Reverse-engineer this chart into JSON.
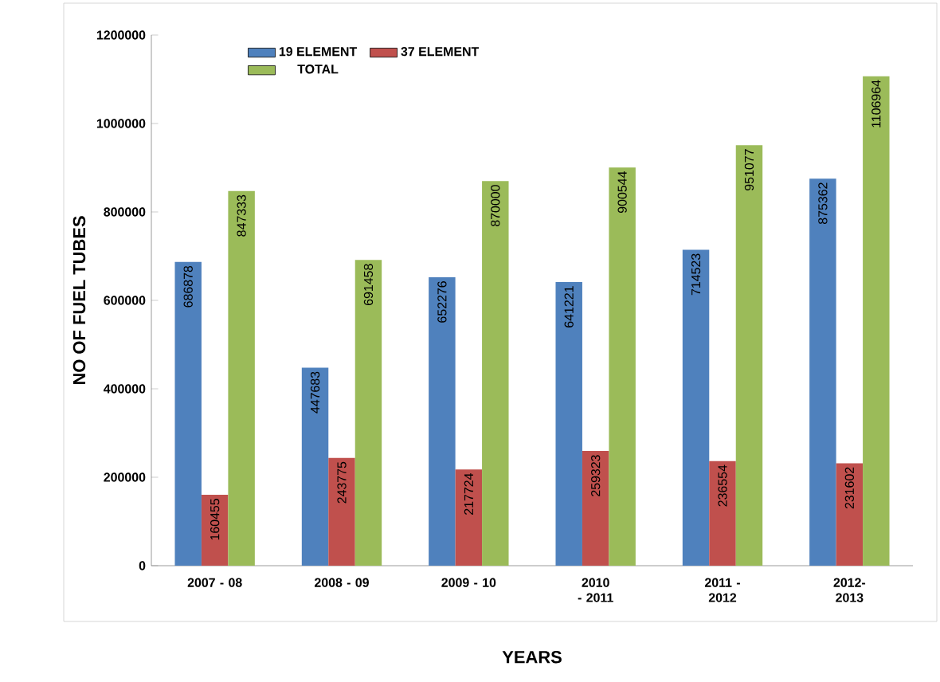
{
  "chart_data": {
    "type": "bar",
    "xlabel": "YEARS",
    "ylabel": "NO OF FUEL TUBES",
    "categories": [
      "2007 - 08",
      "2008 - 09",
      "2009 - 10",
      "2010 - 2011",
      "2011 - 2012",
      "2012-2013"
    ],
    "series": [
      {
        "name": "19 ELEMENT",
        "color": "#4f81bd",
        "values": [
          686878,
          447683,
          652276,
          641221,
          714523,
          875362
        ]
      },
      {
        "name": "37 ELEMENT",
        "color": "#c0504d",
        "values": [
          160455,
          243775,
          217724,
          259323,
          236554,
          231602
        ]
      },
      {
        "name": "TOTAL",
        "color": "#9bbb59",
        "values": [
          847333,
          691458,
          870000,
          900544,
          951077,
          1106964
        ]
      }
    ],
    "ylim": [
      0,
      1200000
    ],
    "yticks": [
      0,
      200000,
      400000,
      600000,
      800000,
      1000000,
      1200000
    ],
    "data_labels": true,
    "legend": "top left",
    "grid": false
  }
}
